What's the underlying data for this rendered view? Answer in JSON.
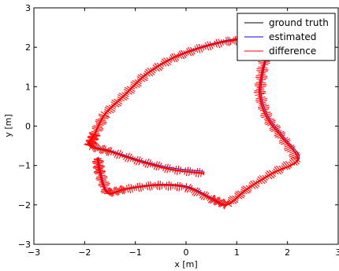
{
  "chart_data": {
    "type": "line",
    "title": "",
    "xlabel": "x [m]",
    "ylabel": "y [m]",
    "xlim": [
      -3,
      3
    ],
    "ylim": [
      -3,
      3
    ],
    "x_ticks": [
      -3,
      -2,
      -1,
      0,
      1,
      2,
      3
    ],
    "y_ticks": [
      -3,
      -2,
      -1,
      0,
      1,
      2,
      3
    ],
    "grid": false,
    "legend": {
      "placement": "top-right",
      "entries": [
        {
          "label": "ground truth",
          "color": "#000000"
        },
        {
          "label": "estimated",
          "color": "#0000ff"
        },
        {
          "label": "difference",
          "color": "#ff0000"
        }
      ]
    },
    "series": [
      {
        "name": "ground truth",
        "color": "#000000",
        "points": [
          [
            0.35,
            -1.2
          ],
          [
            -0.3,
            -1.1
          ],
          [
            -0.9,
            -0.9
          ],
          [
            -1.5,
            -0.65
          ],
          [
            -1.9,
            -0.5
          ],
          [
            -1.8,
            -0.2
          ],
          [
            -1.6,
            0.3
          ],
          [
            -1.2,
            0.8
          ],
          [
            -0.8,
            1.3
          ],
          [
            -0.3,
            1.7
          ],
          [
            0.2,
            1.95
          ],
          [
            0.8,
            2.15
          ],
          [
            1.3,
            2.2
          ],
          [
            1.6,
            2.0
          ],
          [
            1.5,
            1.4
          ],
          [
            1.45,
            0.8
          ],
          [
            1.6,
            0.2
          ],
          [
            1.9,
            -0.3
          ],
          [
            2.2,
            -0.85
          ],
          [
            1.7,
            -1.2
          ],
          [
            1.2,
            -1.6
          ],
          [
            0.8,
            -2.0
          ],
          [
            0.5,
            -1.85
          ],
          [
            0.0,
            -1.55
          ],
          [
            -0.6,
            -1.5
          ],
          [
            -1.2,
            -1.6
          ],
          [
            -1.55,
            -1.7
          ],
          [
            -1.7,
            -1.2
          ],
          [
            -1.75,
            -0.8
          ]
        ]
      },
      {
        "name": "estimated",
        "color": "#0000ff",
        "points": [
          [
            0.35,
            -1.15
          ],
          [
            -0.3,
            -1.06
          ],
          [
            -0.9,
            -0.87
          ],
          [
            -1.5,
            -0.62
          ],
          [
            -1.88,
            -0.48
          ],
          [
            -1.78,
            -0.17
          ],
          [
            -1.58,
            0.33
          ],
          [
            -1.18,
            0.83
          ],
          [
            -0.78,
            1.33
          ],
          [
            -0.28,
            1.73
          ],
          [
            0.22,
            1.98
          ],
          [
            0.82,
            2.18
          ],
          [
            1.32,
            2.23
          ],
          [
            1.62,
            2.03
          ],
          [
            1.53,
            1.42
          ],
          [
            1.48,
            0.82
          ],
          [
            1.63,
            0.22
          ],
          [
            1.93,
            -0.28
          ],
          [
            2.23,
            -0.83
          ],
          [
            1.72,
            -1.18
          ],
          [
            1.22,
            -1.58
          ],
          [
            0.82,
            -1.98
          ],
          [
            0.52,
            -1.83
          ],
          [
            0.02,
            -1.53
          ],
          [
            -0.58,
            -1.48
          ],
          [
            -1.18,
            -1.58
          ],
          [
            -1.53,
            -1.68
          ],
          [
            -1.68,
            -1.18
          ],
          [
            -1.73,
            -0.78
          ]
        ]
      },
      {
        "name": "difference",
        "color": "#ff0000",
        "points": [
          [
            0.35,
            -1.2
          ],
          [
            -0.3,
            -1.1
          ],
          [
            -0.9,
            -0.9
          ],
          [
            -1.5,
            -0.65
          ],
          [
            -1.9,
            -0.5
          ],
          [
            -1.8,
            -0.2
          ],
          [
            -1.6,
            0.3
          ],
          [
            -1.2,
            0.8
          ],
          [
            -0.8,
            1.3
          ],
          [
            -0.3,
            1.7
          ],
          [
            0.2,
            1.95
          ],
          [
            0.8,
            2.15
          ],
          [
            1.3,
            2.2
          ],
          [
            1.6,
            2.0
          ],
          [
            1.5,
            1.4
          ],
          [
            1.45,
            0.8
          ],
          [
            1.6,
            0.2
          ],
          [
            1.9,
            -0.3
          ],
          [
            2.2,
            -0.85
          ],
          [
            1.7,
            -1.2
          ],
          [
            1.2,
            -1.6
          ],
          [
            0.8,
            -2.0
          ],
          [
            0.5,
            -1.85
          ],
          [
            0.0,
            -1.55
          ],
          [
            -0.6,
            -1.5
          ],
          [
            -1.2,
            -1.6
          ],
          [
            -1.55,
            -1.7
          ],
          [
            -1.7,
            -1.2
          ],
          [
            -1.75,
            -0.8
          ]
        ]
      }
    ]
  }
}
